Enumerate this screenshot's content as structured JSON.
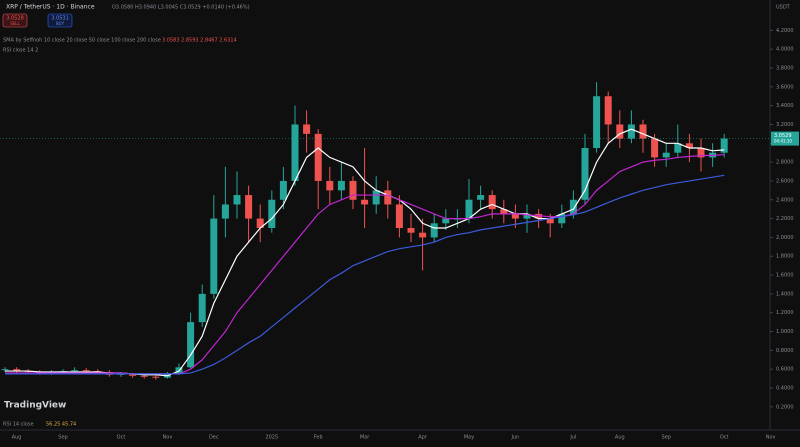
{
  "header": {
    "symbol": "XRP / TetherUS · 1D · Binance",
    "ohlc": "O3.0580 H3.0940 L3.0045 C3.0529 +0.0140 (+0.46%)",
    "sell_price": "3.0528",
    "sell": "SELL",
    "buy_price": "3.0531",
    "buy": "BUY",
    "indicator": "SMA by Seffnoh 10 close 20 close 50 close 100 close 200 close",
    "indicator_values": "3.0583 2.8593 2.8467 2.6314",
    "sub_indicator": "RSI close 14 2",
    "currency": "USDT"
  },
  "footer": {
    "rsi": "RSI 14 close",
    "rsi_values": "56.25 45.74",
    "brand": "TradingView"
  },
  "chart_data": {
    "type": "candlestick",
    "price_label": "3.0529",
    "timer_label": "04:41:10",
    "categories": [
      null,
      "Aug",
      null,
      null,
      null,
      "Sep",
      null,
      null,
      null,
      null,
      "Oct",
      null,
      null,
      null,
      "Nov",
      null,
      null,
      null,
      "Dec",
      null,
      null,
      null,
      null,
      "2025",
      null,
      null,
      null,
      "Feb",
      null,
      null,
      null,
      "Mar",
      null,
      null,
      null,
      null,
      "Apr",
      null,
      null,
      null,
      "May",
      null,
      null,
      null,
      "Jun",
      null,
      null,
      null,
      null,
      "Jul",
      null,
      null,
      null,
      "Aug",
      null,
      null,
      null,
      "Sep",
      null,
      null,
      null,
      null,
      "Oct",
      null,
      null,
      null,
      "Nov"
    ],
    "open": [
      0.59,
      0.6,
      0.58,
      0.57,
      0.56,
      0.57,
      0.58,
      0.59,
      0.58,
      0.57,
      0.54,
      0.55,
      0.53,
      0.52,
      0.51,
      0.55,
      0.62,
      1.1,
      1.4,
      2.2,
      2.35,
      2.45,
      2.2,
      2.1,
      2.4,
      2.6,
      3.2,
      3.1,
      2.6,
      2.5,
      2.6,
      2.4,
      2.35,
      2.5,
      2.35,
      2.1,
      2.05,
      2.0,
      2.15,
      2.2,
      2.2,
      2.4,
      2.45,
      2.3,
      2.25,
      2.2,
      2.25,
      2.2,
      2.15,
      2.25,
      2.4,
      2.95,
      3.5,
      3.2,
      3.05,
      3.2,
      3.05,
      2.85,
      2.9,
      3.0,
      2.95,
      2.85,
      2.9,
      null,
      null,
      null,
      null
    ],
    "high": [
      0.62,
      0.62,
      0.6,
      0.59,
      0.59,
      0.6,
      0.62,
      0.61,
      0.6,
      0.59,
      0.57,
      0.56,
      0.55,
      0.54,
      0.57,
      0.66,
      1.2,
      1.5,
      2.45,
      2.75,
      2.7,
      2.55,
      2.35,
      2.5,
      2.75,
      3.4,
      3.35,
      3.15,
      2.75,
      2.8,
      2.65,
      2.95,
      2.65,
      2.6,
      2.45,
      2.25,
      2.2,
      2.25,
      2.3,
      2.3,
      2.62,
      2.55,
      2.5,
      2.4,
      2.35,
      2.35,
      2.3,
      2.25,
      2.35,
      2.5,
      3.1,
      3.65,
      3.55,
      3.35,
      3.35,
      3.25,
      3.1,
      3.0,
      3.2,
      3.1,
      3.05,
      3.0,
      3.1,
      null,
      null,
      null,
      null
    ],
    "low": [
      0.57,
      0.56,
      0.55,
      0.54,
      0.54,
      0.55,
      0.56,
      0.56,
      0.55,
      0.52,
      0.52,
      0.51,
      0.5,
      0.49,
      0.5,
      0.54,
      0.61,
      1.05,
      1.35,
      2.0,
      2.2,
      1.95,
      1.95,
      2.05,
      2.3,
      2.55,
      2.9,
      2.3,
      2.35,
      2.4,
      2.3,
      2.1,
      2.25,
      2.2,
      2.0,
      1.95,
      1.65,
      1.95,
      2.08,
      2.1,
      2.15,
      2.3,
      2.2,
      2.15,
      2.1,
      2.05,
      2.1,
      2.0,
      2.1,
      2.2,
      2.35,
      2.9,
      3.0,
      2.95,
      3.0,
      2.9,
      2.75,
      2.75,
      2.85,
      2.8,
      2.7,
      2.75,
      2.85,
      null,
      null,
      null,
      null
    ],
    "close": [
      0.6,
      0.58,
      0.57,
      0.56,
      0.57,
      0.58,
      0.59,
      0.58,
      0.57,
      0.54,
      0.55,
      0.53,
      0.52,
      0.51,
      0.55,
      0.62,
      1.1,
      1.4,
      2.2,
      2.35,
      2.45,
      2.2,
      2.1,
      2.4,
      2.6,
      3.2,
      3.1,
      2.6,
      2.5,
      2.6,
      2.4,
      2.35,
      2.5,
      2.35,
      2.1,
      2.05,
      2.0,
      2.15,
      2.2,
      2.2,
      2.4,
      2.45,
      2.3,
      2.25,
      2.2,
      2.25,
      2.2,
      2.15,
      2.25,
      2.4,
      2.95,
      3.5,
      3.2,
      3.05,
      3.2,
      3.05,
      2.85,
      2.9,
      3.0,
      2.95,
      2.85,
      2.9,
      3.05,
      null,
      null,
      null,
      null
    ],
    "up_color": "#26a69a",
    "down_color": "#ef5350",
    "lines": [
      {
        "color": "#ffffff",
        "values": [
          0.58,
          0.58,
          0.58,
          0.57,
          0.57,
          0.57,
          0.57,
          0.57,
          0.57,
          0.56,
          0.56,
          0.55,
          0.54,
          0.54,
          0.53,
          0.58,
          0.75,
          0.95,
          1.3,
          1.55,
          1.8,
          1.95,
          2.1,
          2.2,
          2.35,
          2.6,
          2.85,
          2.95,
          2.85,
          2.8,
          2.75,
          2.6,
          2.5,
          2.45,
          2.4,
          2.3,
          2.15,
          2.1,
          2.1,
          2.15,
          2.2,
          2.3,
          2.35,
          2.3,
          2.25,
          2.25,
          2.2,
          2.2,
          2.25,
          2.3,
          2.5,
          2.8,
          3.0,
          3.1,
          3.15,
          3.1,
          3.05,
          3.0,
          3.0,
          2.95,
          2.95,
          2.92,
          2.93,
          null,
          null,
          null,
          null
        ]
      },
      {
        "color": "#c026d3",
        "values": [
          0.56,
          0.56,
          0.56,
          0.56,
          0.56,
          0.56,
          0.56,
          0.56,
          0.56,
          0.56,
          0.56,
          0.55,
          0.55,
          0.55,
          0.55,
          0.55,
          0.6,
          0.7,
          0.85,
          1.0,
          1.2,
          1.35,
          1.5,
          1.65,
          1.8,
          1.95,
          2.1,
          2.25,
          2.35,
          2.4,
          2.45,
          2.45,
          2.45,
          2.45,
          2.4,
          2.35,
          2.3,
          2.25,
          2.2,
          2.2,
          2.2,
          2.22,
          2.25,
          2.25,
          2.25,
          2.24,
          2.23,
          2.22,
          2.22,
          2.25,
          2.35,
          2.5,
          2.6,
          2.7,
          2.75,
          2.8,
          2.82,
          2.83,
          2.85,
          2.86,
          2.87,
          2.87,
          2.88,
          null,
          null,
          null,
          null
        ]
      },
      {
        "color": "#3b5bdb",
        "values": [
          0.55,
          0.55,
          0.55,
          0.55,
          0.55,
          0.55,
          0.55,
          0.55,
          0.55,
          0.55,
          0.55,
          0.55,
          0.55,
          0.55,
          0.55,
          0.55,
          0.56,
          0.6,
          0.65,
          0.72,
          0.8,
          0.88,
          0.95,
          1.05,
          1.15,
          1.25,
          1.35,
          1.45,
          1.55,
          1.62,
          1.7,
          1.75,
          1.8,
          1.85,
          1.88,
          1.9,
          1.92,
          1.95,
          2.0,
          2.03,
          2.05,
          2.08,
          2.1,
          2.12,
          2.14,
          2.16,
          2.18,
          2.2,
          2.22,
          2.24,
          2.27,
          2.32,
          2.37,
          2.42,
          2.46,
          2.5,
          2.53,
          2.56,
          2.58,
          2.6,
          2.62,
          2.64,
          2.66,
          null,
          null,
          null,
          null
        ]
      }
    ],
    "ylim": [
      0.06,
      4.31
    ],
    "yticks": [
      {
        "value": 4.2,
        "label": "4.2000"
      },
      {
        "value": 4.0,
        "label": "4.0000"
      },
      {
        "value": 3.8,
        "label": "3.8000"
      },
      {
        "value": 3.6,
        "label": "3.6000"
      },
      {
        "value": 3.4,
        "label": "3.4000"
      },
      {
        "value": 3.2,
        "label": "3.2000"
      },
      {
        "value": 3.0,
        "label": "3.0000"
      },
      {
        "value": 2.8,
        "label": "2.8000"
      },
      {
        "value": 2.6,
        "label": "2.6000"
      },
      {
        "value": 2.4,
        "label": "2.4000"
      },
      {
        "value": 2.2,
        "label": "2.2000"
      },
      {
        "value": 2.0,
        "label": "2.0000"
      },
      {
        "value": 1.8,
        "label": "1.8000"
      },
      {
        "value": 1.6,
        "label": "1.6000"
      },
      {
        "value": 1.4,
        "label": "1.4000"
      },
      {
        "value": 1.2,
        "label": "1.2000"
      },
      {
        "value": 1.0,
        "label": "1.0000"
      },
      {
        "value": 0.8,
        "label": "0.8000"
      },
      {
        "value": 0.6,
        "label": "0.6000"
      },
      {
        "value": 0.4,
        "label": "0.4000"
      },
      {
        "value": 0.2,
        "label": "0.2000"
      }
    ],
    "grid": false
  }
}
